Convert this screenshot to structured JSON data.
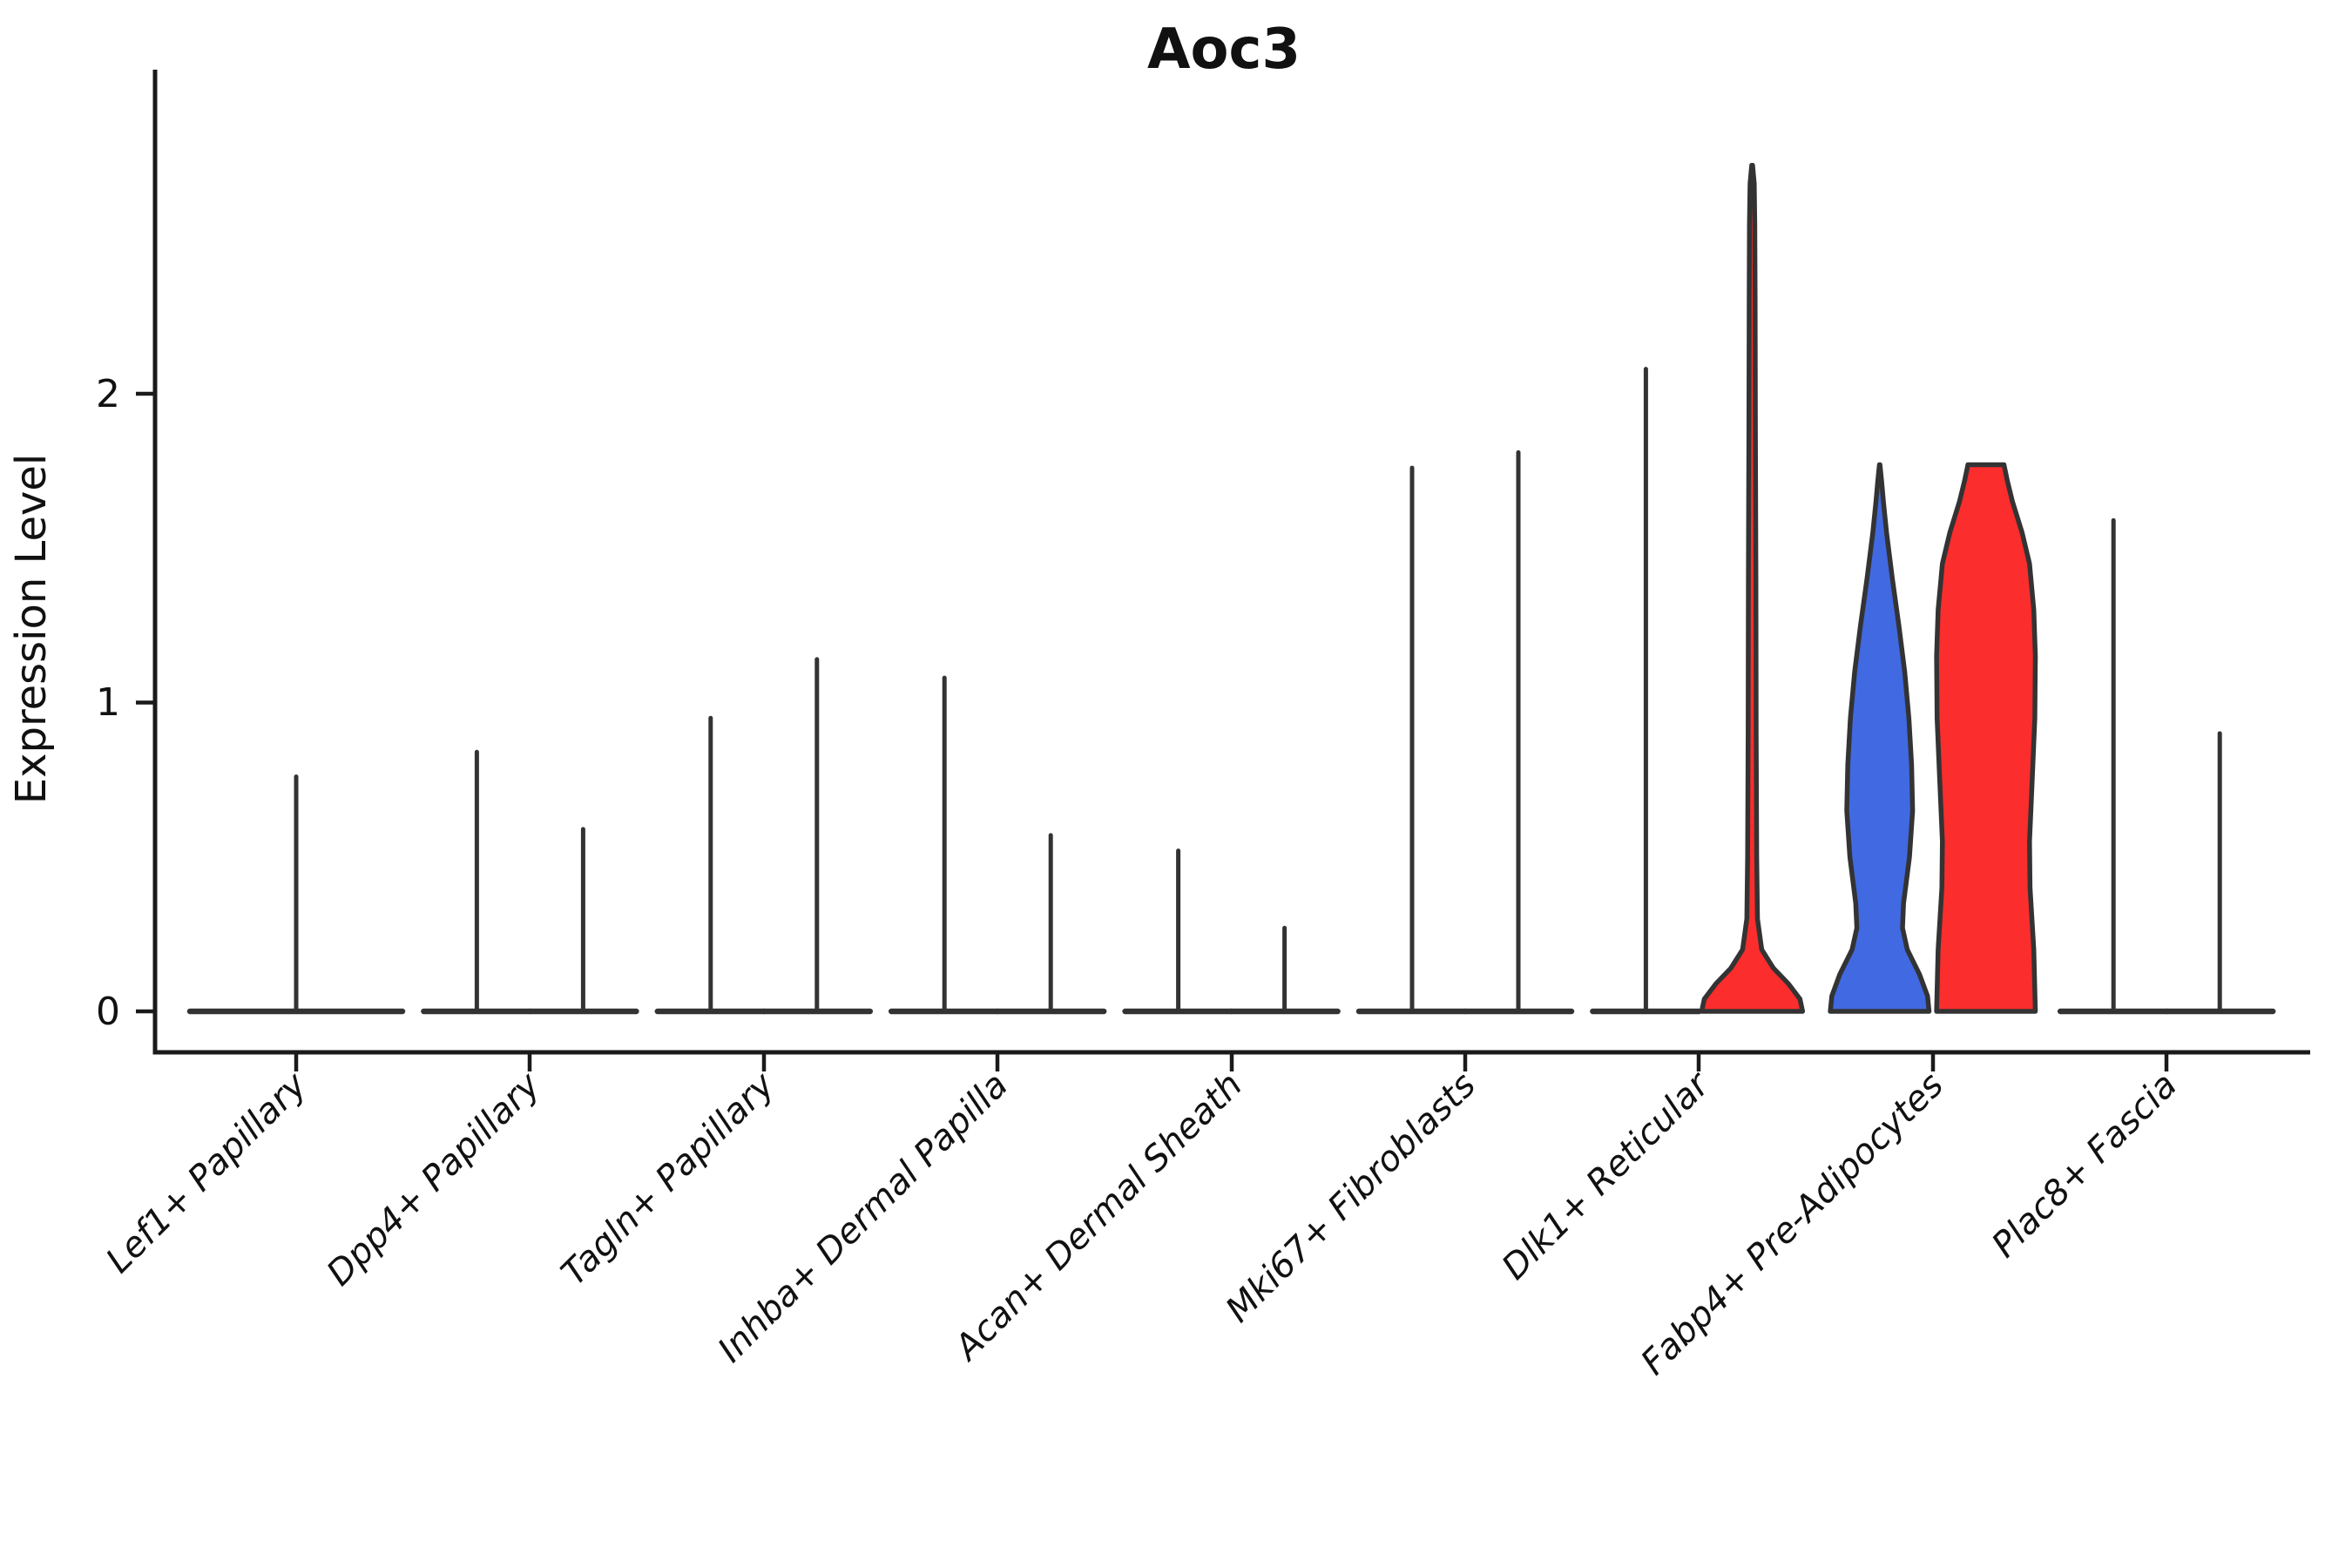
{
  "chart_data": {
    "type": "violin",
    "title": "Aoc3",
    "ylabel": "Expression Level",
    "xlabel": "",
    "ytick_labels": [
      "0",
      "1",
      "2"
    ],
    "ytick_values": [
      0,
      1,
      2
    ],
    "ylim": [
      -0.13,
      3.05
    ],
    "grid": "off",
    "legend": "none",
    "categories": [
      "Lef1+ Papillary",
      "Dpp4+ Papillary",
      "Tagln+ Papillary",
      "Inhba+ Dermal Papilla",
      "Acan+ Dermal Sheath",
      "Mki67+ Fibroblasts",
      "Dlk1+ Reticular",
      "Fabp4+ Pre-Adipocytes",
      "Plac8+ Fascia"
    ],
    "colors": {
      "group1_fill": "#4169E1",
      "group2_fill": "#FB2D2D",
      "violin_outline": "#333333",
      "axis": "#1a1a1a",
      "background": "#ffffff"
    },
    "violins": [
      {
        "category_index": 0,
        "group": "single",
        "shape": "spike",
        "max_expression": 0.76
      },
      {
        "category_index": 1,
        "group": "1",
        "shape": "spike",
        "max_expression": 0.84
      },
      {
        "category_index": 1,
        "group": "2",
        "shape": "spike",
        "max_expression": 0.59
      },
      {
        "category_index": 2,
        "group": "1",
        "shape": "spike",
        "max_expression": 0.95
      },
      {
        "category_index": 2,
        "group": "2",
        "shape": "spike",
        "max_expression": 1.14
      },
      {
        "category_index": 3,
        "group": "1",
        "shape": "spike",
        "max_expression": 1.08
      },
      {
        "category_index": 3,
        "group": "2",
        "shape": "spike",
        "max_expression": 0.57
      },
      {
        "category_index": 4,
        "group": "1",
        "shape": "spike",
        "max_expression": 0.52
      },
      {
        "category_index": 4,
        "group": "2",
        "shape": "spike",
        "max_expression": 0.27
      },
      {
        "category_index": 5,
        "group": "1",
        "shape": "spike",
        "max_expression": 1.76
      },
      {
        "category_index": 5,
        "group": "2",
        "shape": "spike",
        "max_expression": 1.81
      },
      {
        "category_index": 6,
        "group": "1",
        "shape": "spike",
        "max_expression": 2.08
      },
      {
        "category_index": 6,
        "group": "2",
        "shape": "violin",
        "max_expression": 2.74,
        "fill": "#FB2D2D",
        "profile": [
          [
            0,
            0.95
          ],
          [
            0.04,
            0.9
          ],
          [
            0.09,
            0.68
          ],
          [
            0.14,
            0.4
          ],
          [
            0.2,
            0.18
          ],
          [
            0.3,
            0.1
          ],
          [
            0.5,
            0.085
          ],
          [
            0.9,
            0.075
          ],
          [
            1.4,
            0.07
          ],
          [
            1.9,
            0.06
          ],
          [
            2.3,
            0.055
          ],
          [
            2.55,
            0.05
          ],
          [
            2.68,
            0.04
          ],
          [
            2.74,
            0.008
          ]
        ]
      },
      {
        "category_index": 7,
        "group": "1",
        "shape": "violin",
        "max_expression": 1.77,
        "fill": "#4169E1",
        "profile": [
          [
            0,
            0.93
          ],
          [
            0.05,
            0.9
          ],
          [
            0.12,
            0.75
          ],
          [
            0.2,
            0.52
          ],
          [
            0.27,
            0.43
          ],
          [
            0.35,
            0.45
          ],
          [
            0.5,
            0.56
          ],
          [
            0.65,
            0.62
          ],
          [
            0.8,
            0.6
          ],
          [
            0.95,
            0.55
          ],
          [
            1.1,
            0.47
          ],
          [
            1.25,
            0.36
          ],
          [
            1.4,
            0.24
          ],
          [
            1.55,
            0.13
          ],
          [
            1.65,
            0.07
          ],
          [
            1.72,
            0.035
          ],
          [
            1.77,
            0.005
          ]
        ]
      },
      {
        "category_index": 7,
        "group": "2",
        "shape": "violin",
        "max_expression": 1.77,
        "fill": "#FB2D2D",
        "profile": [
          [
            0,
            0.93
          ],
          [
            0.2,
            0.9
          ],
          [
            0.4,
            0.83
          ],
          [
            0.55,
            0.82
          ],
          [
            0.75,
            0.87
          ],
          [
            0.95,
            0.92
          ],
          [
            1.15,
            0.93
          ],
          [
            1.3,
            0.9
          ],
          [
            1.45,
            0.82
          ],
          [
            1.55,
            0.68
          ],
          [
            1.65,
            0.5
          ],
          [
            1.72,
            0.4
          ],
          [
            1.77,
            0.34
          ]
        ]
      },
      {
        "category_index": 8,
        "group": "1",
        "shape": "spike",
        "max_expression": 1.59
      },
      {
        "category_index": 8,
        "group": "2",
        "shape": "spike",
        "max_expression": 0.9
      }
    ]
  }
}
